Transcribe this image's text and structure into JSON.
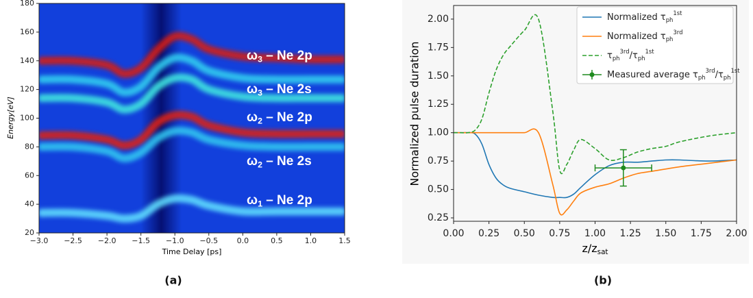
{
  "chart_data": [
    {
      "type": "spectrogram",
      "xlabel": "Time Delay [ps]",
      "ylabel": "Energy[eV]",
      "caption": "(a)",
      "xlim": [
        -3.0,
        1.5
      ],
      "ylim": [
        20,
        180
      ],
      "xticks": [
        {
          "value": -3.0,
          "label": "−3.0"
        },
        {
          "value": -2.5,
          "label": "−2.5"
        },
        {
          "value": -2.0,
          "label": "−2.0"
        },
        {
          "value": -1.5,
          "label": "−1.5"
        },
        {
          "value": -1.0,
          "label": "−1.0"
        },
        {
          "value": -0.5,
          "label": "−0.5"
        },
        {
          "value": 0.0,
          "label": "0.0"
        },
        {
          "value": 0.5,
          "label": "0.5"
        },
        {
          "value": 1.0,
          "label": "1.0"
        },
        {
          "value": 1.5,
          "label": "1.5"
        }
      ],
      "yticks": [
        20,
        40,
        60,
        80,
        100,
        120,
        140,
        160,
        180
      ],
      "background": "#1240dc",
      "x": [
        -3.0,
        -2.5,
        -2.0,
        -1.75,
        -1.5,
        -1.25,
        -1.0,
        -0.75,
        -0.5,
        0.0,
        0.5,
        1.0,
        1.5
      ],
      "series": [
        {
          "color": "#d81c10",
          "values": [
            140,
            140,
            137,
            131,
            135,
            148,
            157,
            155,
            148,
            143,
            142,
            141,
            141
          ]
        },
        {
          "color": "#30d0f0",
          "values": [
            127,
            127,
            124,
            118,
            122,
            135,
            142,
            140,
            133,
            128,
            127,
            127,
            127
          ]
        },
        {
          "color": "#40e8e0",
          "values": [
            114,
            114,
            111,
            106,
            110,
            122,
            128,
            127,
            120,
            115,
            114,
            114,
            114
          ]
        },
        {
          "color": "#e02010",
          "values": [
            88,
            88,
            85,
            81,
            85,
            97,
            102,
            101,
            95,
            90,
            89,
            89,
            89
          ]
        },
        {
          "color": "#30c8f0",
          "values": [
            80,
            80,
            77,
            72,
            76,
            86,
            91,
            90,
            85,
            81,
            80,
            80,
            80
          ]
        },
        {
          "color": "#60e0ff",
          "values": [
            34,
            34,
            32,
            30,
            32,
            40,
            44,
            43,
            39,
            35,
            35,
            35,
            35
          ]
        }
      ],
      "annotations": [
        {
          "text": [
            "ω",
            "3",
            " – Ne 2p"
          ],
          "text_style": [
            "normal",
            "sub",
            "normal"
          ]
        },
        {
          "text": [
            "ω",
            "3",
            " – Ne 2s"
          ],
          "text_style": [
            "normal",
            "sub",
            "normal"
          ]
        },
        {
          "text": [
            "ω",
            "2",
            " – Ne 2p"
          ],
          "text_style": [
            "normal",
            "sub",
            "normal"
          ]
        },
        {
          "text": [
            "ω",
            "2",
            " – Ne 2s"
          ],
          "text_style": [
            "normal",
            "sub",
            "normal"
          ]
        },
        {
          "text": [
            "ω",
            "1",
            " – Ne 2p"
          ],
          "text_style": [
            "normal",
            "sub",
            "normal"
          ]
        }
      ]
    },
    {
      "type": "line",
      "xlabel": [
        "z/z",
        "sat"
      ],
      "xlabel_style": [
        "normal",
        "sub"
      ],
      "ylabel": "Normalized pulse duration",
      "caption": "(b)",
      "xlim": [
        0,
        2.0
      ],
      "ylim": [
        0.22,
        2.12
      ],
      "xticks": [
        {
          "value": 0,
          "label": "0.00"
        },
        {
          "value": 0.25,
          "label": "0.25"
        },
        {
          "value": 0.5,
          "label": "0.50"
        },
        {
          "value": 0.75,
          "label": "0.75"
        },
        {
          "value": 1.0,
          "label": "1.00"
        },
        {
          "value": 1.25,
          "label": "1.25"
        },
        {
          "value": 1.5,
          "label": "1.50"
        },
        {
          "value": 1.75,
          "label": "1.75"
        },
        {
          "value": 2.0,
          "label": "2.00"
        }
      ],
      "yticks": [
        {
          "value": 0.25,
          "label": "0.25"
        },
        {
          "value": 0.5,
          "label": "0.50"
        },
        {
          "value": 0.75,
          "label": "0.75"
        },
        {
          "value": 1.0,
          "label": "1.00"
        },
        {
          "value": 1.25,
          "label": "1.25"
        },
        {
          "value": 1.5,
          "label": "1.50"
        },
        {
          "value": 1.75,
          "label": "1.75"
        },
        {
          "value": 2.0,
          "label": "2.00"
        }
      ],
      "x": [
        0,
        0.05,
        0.1,
        0.15,
        0.2,
        0.25,
        0.3,
        0.35,
        0.4,
        0.5,
        0.6,
        0.7,
        0.75,
        0.8,
        0.85,
        0.9,
        1.0,
        1.1,
        1.2,
        1.3,
        1.4,
        1.5,
        1.6,
        1.8,
        2.0
      ],
      "legend": "upper right",
      "series": [
        {
          "name": [
            "Normalized τ",
            "ph",
            "1st"
          ],
          "name_style": [
            "normal",
            "sub",
            "sup"
          ],
          "color": "#1f77b4",
          "values": [
            1.0,
            1.0,
            1.0,
            0.99,
            0.9,
            0.72,
            0.6,
            0.54,
            0.51,
            0.48,
            0.45,
            0.43,
            0.43,
            0.43,
            0.46,
            0.52,
            0.63,
            0.71,
            0.74,
            0.74,
            0.75,
            0.76,
            0.76,
            0.75,
            0.76
          ]
        },
        {
          "name": [
            "Normalized τ",
            "ph",
            "3rd"
          ],
          "name_style": [
            "normal",
            "sub",
            "sup"
          ],
          "color": "#ff7f0e",
          "values": [
            1.0,
            1.0,
            1.0,
            1.0,
            1.0,
            1.0,
            1.0,
            1.0,
            1.0,
            1.0,
            1.0,
            0.55,
            0.29,
            0.32,
            0.4,
            0.47,
            0.52,
            0.55,
            0.6,
            0.64,
            0.66,
            0.68,
            0.7,
            0.73,
            0.76
          ]
        },
        {
          "name": [
            "τ",
            "ph",
            "3rd",
            "/τ",
            "ph",
            "1st"
          ],
          "name_style": [
            "normal",
            "sub",
            "sup",
            "normal",
            "sub",
            "sup"
          ],
          "color": "#2ca02c",
          "dash": true,
          "values": [
            1.0,
            1.0,
            1.0,
            1.02,
            1.12,
            1.35,
            1.55,
            1.68,
            1.76,
            1.9,
            2.0,
            1.2,
            0.67,
            0.72,
            0.85,
            0.94,
            0.86,
            0.76,
            0.78,
            0.83,
            0.86,
            0.88,
            0.92,
            0.97,
            1.0
          ]
        },
        {
          "name": [
            "Measured average τ",
            "ph",
            "3rd",
            "/τ",
            "ph",
            "1st"
          ],
          "name_style": [
            "normal",
            "sub",
            "sup",
            "normal",
            "sub",
            "sup"
          ],
          "color": "#1e8a1e",
          "type": "errorbar",
          "x": [
            1.2
          ],
          "values": [
            0.69
          ],
          "xerr": [
            0.2
          ],
          "yerr": [
            0.16
          ]
        }
      ]
    }
  ]
}
